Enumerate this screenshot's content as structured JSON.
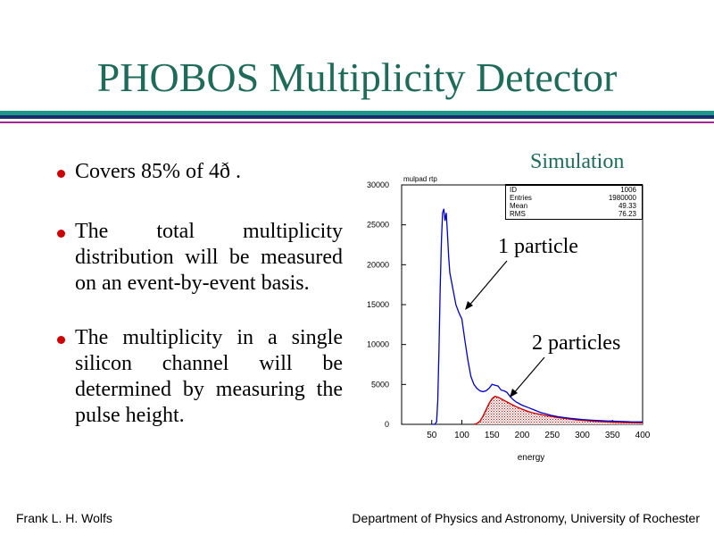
{
  "slide": {
    "title": "PHOBOS Multiplicity Detector",
    "bullets": [
      "Covers 85% of 4ð .",
      "The total multiplicity distribution will be measured on an event-by-event basis.",
      "The multiplicity in a single silicon channel will be determined by measuring the pulse height."
    ],
    "simulation_label": "Simulation",
    "annotation_1": "1 particle",
    "annotation_2": "2 particles",
    "footer_left": "Frank L. H. Wolfs",
    "footer_right": "Department of Physics and Astronomy, University of Rochester",
    "colors": {
      "title": "#1f6b5a",
      "rule_teal": "#1f9a8a",
      "rule_navy": "#1a2e6e",
      "rule_purple": "#a02890",
      "bullet": "#cc0000"
    }
  },
  "stats": [
    {
      "key": "ID",
      "value": "1006"
    },
    {
      "key": "Entries",
      "value": "1980000"
    },
    {
      "key": "Mean",
      "value": "49.33"
    },
    {
      "key": "RMS",
      "value": "76.23"
    }
  ],
  "chart_data": {
    "type": "line",
    "title": "mulpad rtp",
    "xlabel": "energy",
    "ylabel": "",
    "xlim": [
      0,
      400
    ],
    "ylim": [
      0,
      30000
    ],
    "x_ticks": [
      50,
      100,
      150,
      200,
      250,
      300,
      350,
      400
    ],
    "y_ticks": [
      0,
      5000,
      10000,
      15000,
      20000,
      25000,
      30000
    ],
    "y_tick_labels": [
      "0",
      "5000",
      "10000",
      "15000",
      "20000",
      "25000",
      "30000"
    ],
    "series": [
      {
        "color": "#0000cc",
        "x": [
          50,
          55,
          58,
          60,
          62,
          64,
          66,
          68,
          70,
          72,
          74,
          76,
          78,
          80,
          85,
          90,
          95,
          100,
          105,
          110,
          115,
          120,
          125,
          130,
          135,
          140,
          145,
          150,
          155,
          160,
          165,
          170,
          175,
          180,
          185,
          190,
          200,
          210,
          220,
          230,
          240,
          250,
          260,
          280,
          300,
          320,
          340,
          360,
          380,
          400
        ],
        "values": [
          0,
          0,
          300,
          3000,
          9000,
          17000,
          23000,
          26500,
          27000,
          25500,
          26500,
          24000,
          21000,
          19000,
          17000,
          15000,
          14000,
          13200,
          10500,
          8000,
          6000,
          5000,
          4500,
          4200,
          4100,
          4200,
          4500,
          5000,
          4900,
          4800,
          4300,
          4200,
          4000,
          3500,
          3100,
          2800,
          2400,
          2100,
          1800,
          1500,
          1300,
          1100,
          950,
          750,
          600,
          500,
          420,
          380,
          330,
          300
        ]
      },
      {
        "color": "#cc0000",
        "fill": "hatched",
        "x": [
          120,
          125,
          130,
          135,
          140,
          145,
          150,
          155,
          160,
          165,
          170,
          180,
          190,
          200,
          210,
          220,
          240,
          260,
          280,
          300,
          320,
          340,
          360,
          380,
          400
        ],
        "values": [
          0,
          100,
          400,
          1000,
          1800,
          2600,
          3200,
          3500,
          3400,
          3200,
          3000,
          2600,
          2200,
          1900,
          1600,
          1400,
          1100,
          850,
          650,
          500,
          380,
          300,
          240,
          200,
          160
        ]
      }
    ]
  }
}
